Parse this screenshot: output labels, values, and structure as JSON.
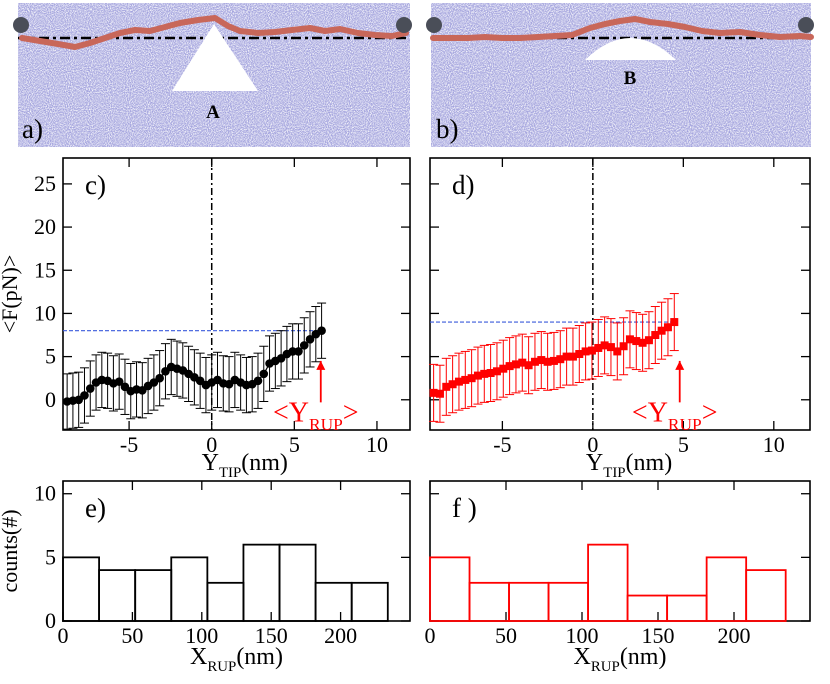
{
  "panels": {
    "a": {
      "label": "a)",
      "tip_label": "A"
    },
    "b": {
      "label": "b)",
      "tip_label": "B"
    }
  },
  "colors": {
    "membrane": "#5c5cb8",
    "polymer": "#c8675a",
    "bead": "#4a4e58",
    "series_c": "#000000",
    "series_d": "#ff0000",
    "reference": "#3b5bdb"
  },
  "chart_data": [
    {
      "type": "scatter",
      "panel_label": "c)",
      "ylabel": "<F(pN)>",
      "xlabel": {
        "main": "Y",
        "sub": "TIP",
        "rest": "(nm)"
      },
      "xlim": [
        -9,
        12
      ],
      "ylim": [
        -3.5,
        28
      ],
      "xticks": [
        -5,
        0,
        5,
        10
      ],
      "yticks": [
        0,
        5,
        10,
        15,
        20,
        25
      ],
      "ref_line": 8,
      "annotation": {
        "open": "<Y",
        "sub": "RUP",
        "close": ">",
        "x": 6.6
      },
      "series": [
        {
          "name": "c",
          "x": [
            -8.75,
            -8.4,
            -8.05,
            -7.7,
            -7.35,
            -7.0,
            -6.65,
            -6.3,
            -5.95,
            -5.6,
            -5.25,
            -4.9,
            -4.55,
            -4.2,
            -3.85,
            -3.5,
            -3.15,
            -2.8,
            -2.45,
            -2.1,
            -1.75,
            -1.4,
            -1.05,
            -0.7,
            -0.35,
            0.0,
            0.35,
            0.7,
            1.05,
            1.4,
            1.75,
            2.1,
            2.45,
            2.8,
            3.15,
            3.5,
            3.85,
            4.2,
            4.55,
            4.9,
            5.25,
            5.6,
            5.95,
            6.3,
            6.65
          ],
          "y": [
            -0.2,
            -0.1,
            0.0,
            0.5,
            1.3,
            2.0,
            2.3,
            2.2,
            1.9,
            2.1,
            1.5,
            1.0,
            1.2,
            1.1,
            1.6,
            2.0,
            2.5,
            3.3,
            3.8,
            3.6,
            3.4,
            3.0,
            2.6,
            2.2,
            1.7,
            2.0,
            2.3,
            1.9,
            1.8,
            2.3,
            2.0,
            1.7,
            1.8,
            2.2,
            3.0,
            4.2,
            4.5,
            4.8,
            5.3,
            5.6,
            5.6,
            6.3,
            7.0,
            7.6,
            8.0
          ],
          "error": [
            3.2,
            3.2,
            3.2,
            3.2,
            3.2,
            3.2,
            3.2,
            3.2,
            3.2,
            3.2,
            3.2,
            3.2,
            3.2,
            3.2,
            3.2,
            3.2,
            3.2,
            3.2,
            3.2,
            3.2,
            3.2,
            3.2,
            3.2,
            3.2,
            3.2,
            3.2,
            3.2,
            3.2,
            3.2,
            3.2,
            3.2,
            3.2,
            3.2,
            3.2,
            3.2,
            3.2,
            3.2,
            3.2,
            3.2,
            3.2,
            3.2,
            3.2,
            3.2,
            3.2,
            3.2
          ]
        }
      ]
    },
    {
      "type": "scatter",
      "panel_label": "d)",
      "ylabel": "",
      "xlabel": {
        "main": "Y",
        "sub": "TIP",
        "rest": "(nm)"
      },
      "xlim": [
        -9,
        12
      ],
      "ylim": [
        -3.5,
        28
      ],
      "xticks": [
        -5,
        0,
        5,
        10
      ],
      "yticks": [
        0,
        5,
        10,
        15,
        20,
        25
      ],
      "ref_line": 9,
      "annotation": {
        "open": "<Y",
        "sub": "RUP",
        "close": ">",
        "x": 4.8
      },
      "series": [
        {
          "name": "d",
          "x": [
            -8.8,
            -8.45,
            -8.1,
            -7.75,
            -7.4,
            -7.05,
            -6.7,
            -6.35,
            -6.0,
            -5.65,
            -5.3,
            -4.95,
            -4.6,
            -4.25,
            -3.9,
            -3.55,
            -3.2,
            -2.85,
            -2.5,
            -2.15,
            -1.8,
            -1.45,
            -1.1,
            -0.75,
            -0.4,
            -0.05,
            0.3,
            0.65,
            1.0,
            1.35,
            1.7,
            2.05,
            2.4,
            2.75,
            3.1,
            3.45,
            3.8,
            4.15,
            4.5
          ],
          "y": [
            0.8,
            0.7,
            1.5,
            1.8,
            2.1,
            2.3,
            2.5,
            2.8,
            3.0,
            3.1,
            3.3,
            3.6,
            3.9,
            4.1,
            4.3,
            4.0,
            4.4,
            4.6,
            4.4,
            4.5,
            4.7,
            5.0,
            5.0,
            5.3,
            5.6,
            5.7,
            6.0,
            6.3,
            6.1,
            5.6,
            6.2,
            7.0,
            6.8,
            6.6,
            6.9,
            7.5,
            8.0,
            8.4,
            9.0
          ],
          "error": [
            3.3,
            3.3,
            3.3,
            3.3,
            3.3,
            3.3,
            3.3,
            3.3,
            3.3,
            3.3,
            3.3,
            3.3,
            3.3,
            3.3,
            3.3,
            3.3,
            3.3,
            3.3,
            3.3,
            3.3,
            3.3,
            3.3,
            3.3,
            3.3,
            3.3,
            3.3,
            3.3,
            3.3,
            3.3,
            3.3,
            3.3,
            3.3,
            3.3,
            3.3,
            3.3,
            3.3,
            3.3,
            3.3,
            3.3
          ]
        }
      ]
    },
    {
      "type": "histogram",
      "panel_label": "e)",
      "ylabel": "counts(#)",
      "xlabel": {
        "main": "X",
        "sub": "RUP",
        "rest": "(nm)"
      },
      "xlim": [
        0,
        250
      ],
      "ylim": [
        0,
        11
      ],
      "xticks": [
        0,
        50,
        100,
        150,
        200
      ],
      "yticks": [
        0,
        5,
        10
      ],
      "bin_edges": [
        0,
        26,
        52,
        78,
        104,
        130,
        156,
        182,
        208,
        234
      ],
      "counts": [
        5,
        4,
        4,
        5,
        3,
        6,
        6,
        3,
        3
      ]
    },
    {
      "type": "histogram",
      "panel_label": "f )",
      "ylabel": "",
      "xlabel": {
        "main": "X",
        "sub": "RUP",
        "rest": "(nm)"
      },
      "xlim": [
        0,
        250
      ],
      "ylim": [
        0,
        11
      ],
      "xticks": [
        0,
        50,
        100,
        150,
        200
      ],
      "yticks": [
        0,
        5,
        10
      ],
      "bin_edges": [
        0,
        26,
        52,
        78,
        104,
        130,
        156,
        182,
        208,
        234
      ],
      "counts": [
        5,
        3,
        3,
        3,
        6,
        2,
        2,
        5,
        4
      ]
    }
  ]
}
